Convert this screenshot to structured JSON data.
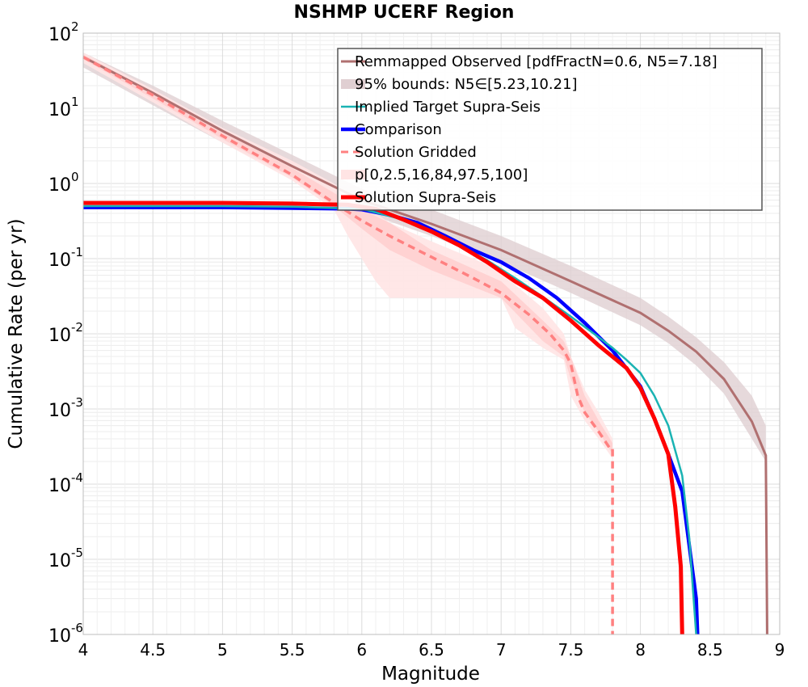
{
  "chart_data": {
    "type": "line",
    "title": "NSHMP UCERF Region",
    "xlabel": "Magnitude",
    "ylabel": "Cumulative Rate (per yr)",
    "xlim": [
      4,
      9
    ],
    "ylim": [
      1e-06,
      100
    ],
    "yscale": "log",
    "grid": true,
    "legend_position": "top-right",
    "x_ticks": [
      "4",
      "4.5",
      "5",
      "5.5",
      "6",
      "6.5",
      "7",
      "7.5",
      "8",
      "8.5",
      "9"
    ],
    "y_ticks": [
      {
        "base": "10",
        "exp": "-6"
      },
      {
        "base": "10",
        "exp": "-5"
      },
      {
        "base": "10",
        "exp": "-4"
      },
      {
        "base": "10",
        "exp": "-3"
      },
      {
        "base": "10",
        "exp": "-2"
      },
      {
        "base": "10",
        "exp": "-1"
      },
      {
        "base": "10",
        "exp": "0"
      },
      {
        "base": "10",
        "exp": "1"
      },
      {
        "base": "10",
        "exp": "2"
      }
    ],
    "legend": [
      "Remmapped Observed [pdfFractN=0.6, N5=7.18]",
      "95% bounds: N5∈[5.23,10.21]",
      "Implied Target Supra-Seis",
      "Comparison",
      " Solution Gridded",
      "p[0,2.5,16,84,97.5,100]",
      "Solution Supra-Seis"
    ],
    "colors": {
      "observed": "#b07070",
      "bounds": "#e0cfd2",
      "target": "#1ab3b3",
      "comparison": "#0000ff",
      "gridded": "#ff8080",
      "percentile_outer": "#ffe4e4",
      "percentile_inner": "#ffcfcf",
      "supra": "#ff0000"
    },
    "series": [
      {
        "key": "observed",
        "x": [
          4.0,
          4.5,
          5.0,
          5.5,
          6.0,
          6.5,
          7.0,
          7.5,
          8.0,
          8.2,
          8.4,
          8.6,
          8.8,
          8.9,
          8.91
        ],
        "y": [
          48,
          16,
          5.0,
          1.7,
          0.6,
          0.29,
          0.13,
          0.05,
          0.019,
          0.011,
          0.0058,
          0.0025,
          0.00068,
          0.00024,
          1e-06
        ]
      },
      {
        "key": "bounds",
        "x": [
          4.0,
          4.5,
          5.0,
          5.5,
          6.0,
          6.5,
          7.0,
          7.5,
          8.0,
          8.2,
          8.4,
          8.6,
          8.8,
          8.9
        ],
        "lower": [
          35,
          11,
          3.5,
          1.2,
          0.42,
          0.2,
          0.09,
          0.035,
          0.013,
          0.0075,
          0.0038,
          0.0016,
          0.0004,
          0.0002
        ],
        "upper": [
          55,
          20,
          6.8,
          2.4,
          0.85,
          0.45,
          0.2,
          0.08,
          0.03,
          0.017,
          0.009,
          0.0042,
          0.0015,
          0.0006
        ]
      },
      {
        "key": "target",
        "x": [
          4.0,
          5.0,
          5.5,
          6.0,
          6.3,
          6.5,
          6.7,
          6.9,
          7.1,
          7.3,
          7.5,
          7.7,
          7.8,
          7.9,
          8.0,
          8.1,
          8.2,
          8.3,
          8.35,
          8.4
        ],
        "y": [
          0.5,
          0.5,
          0.49,
          0.46,
          0.33,
          0.23,
          0.15,
          0.095,
          0.055,
          0.031,
          0.017,
          0.009,
          0.0065,
          0.0045,
          0.003,
          0.0015,
          0.0006,
          0.00013,
          2e-05,
          1e-06
        ]
      },
      {
        "key": "comparison",
        "x": [
          4.0,
          5.0,
          5.5,
          5.9,
          6.0,
          6.2,
          6.4,
          6.6,
          6.8,
          7.0,
          7.2,
          7.4,
          7.6,
          7.8,
          8.0,
          8.1,
          8.2,
          8.3,
          8.4,
          8.41
        ],
        "y": [
          0.48,
          0.48,
          0.47,
          0.46,
          0.45,
          0.38,
          0.3,
          0.2,
          0.13,
          0.09,
          0.055,
          0.03,
          0.014,
          0.006,
          0.002,
          0.00075,
          0.00025,
          8e-05,
          3e-06,
          1e-06
        ]
      },
      {
        "key": "supra",
        "x": [
          4.0,
          5.0,
          5.5,
          5.9,
          6.1,
          6.3,
          6.5,
          6.7,
          6.9,
          7.1,
          7.3,
          7.5,
          7.7,
          7.9,
          8.0,
          8.1,
          8.2,
          8.25,
          8.29,
          8.3
        ],
        "y": [
          0.55,
          0.55,
          0.54,
          0.52,
          0.46,
          0.33,
          0.23,
          0.15,
          0.09,
          0.05,
          0.03,
          0.015,
          0.007,
          0.0035,
          0.0019,
          0.00075,
          0.00025,
          5e-05,
          8e-06,
          1e-06
        ]
      },
      {
        "key": "gridded",
        "x": [
          4.0,
          4.5,
          5.0,
          5.5,
          5.8,
          6.0,
          6.2,
          6.4,
          6.6,
          6.8,
          7.0,
          7.2,
          7.35,
          7.45,
          7.5,
          7.55,
          7.6,
          7.7,
          7.78,
          7.8,
          7.8
        ],
        "y": [
          48,
          15,
          4.3,
          1.3,
          0.55,
          0.32,
          0.2,
          0.13,
          0.085,
          0.055,
          0.035,
          0.018,
          0.01,
          0.006,
          0.004,
          0.0015,
          0.0009,
          0.0005,
          0.0003,
          0.0003,
          1e-06
        ]
      },
      {
        "key": "percentile_outer",
        "x": [
          4.0,
          4.5,
          5.0,
          5.5,
          5.8,
          5.9,
          6.0,
          6.1,
          6.2,
          6.5,
          7.0,
          7.1,
          7.3,
          7.45,
          7.5,
          7.6,
          7.7,
          7.8
        ],
        "lower": [
          40,
          12,
          3.5,
          1.1,
          0.45,
          0.2,
          0.1,
          0.05,
          0.03,
          0.03,
          0.03,
          0.012,
          0.0065,
          0.0045,
          0.0015,
          0.0007,
          0.0004,
          0.00022
        ],
        "upper": [
          55,
          18,
          5.5,
          2.0,
          1.0,
          0.75,
          0.55,
          0.4,
          0.3,
          0.17,
          0.07,
          0.045,
          0.022,
          0.01,
          0.005,
          0.0018,
          0.0009,
          0.0004
        ]
      },
      {
        "key": "percentile_inner",
        "x": [
          4.0,
          4.5,
          5.0,
          5.5,
          5.8,
          6.0,
          6.2,
          6.5,
          7.0,
          7.3,
          7.45,
          7.5,
          7.6,
          7.7,
          7.8
        ],
        "lower": [
          45,
          13.5,
          3.9,
          1.2,
          0.5,
          0.25,
          0.13,
          0.07,
          0.03,
          0.008,
          0.005,
          0.0025,
          0.0009,
          0.0005,
          0.00025
        ],
        "upper": [
          52,
          16.5,
          4.8,
          1.6,
          0.75,
          0.45,
          0.3,
          0.13,
          0.05,
          0.015,
          0.008,
          0.005,
          0.0015,
          0.0007,
          0.00035
        ]
      }
    ]
  }
}
